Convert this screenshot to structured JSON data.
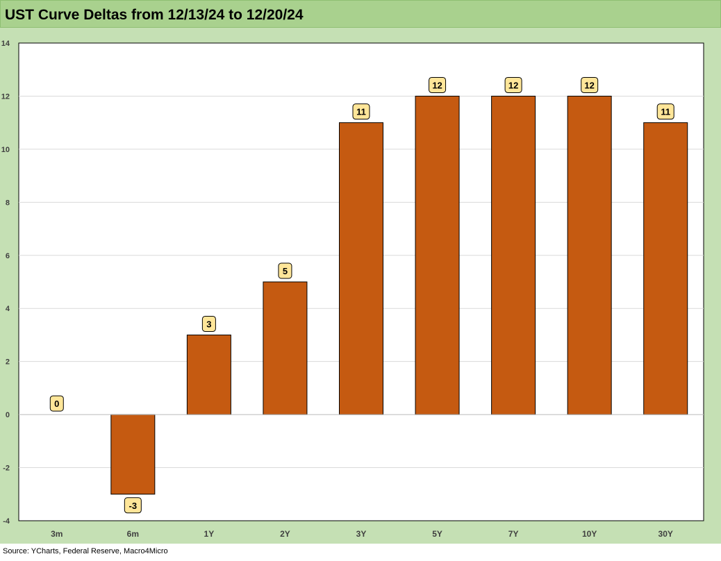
{
  "chart_data": {
    "type": "bar",
    "title": "UST Curve Deltas from 12/13/24 to 12/20/24",
    "categories": [
      "3m",
      "6m",
      "1Y",
      "2Y",
      "3Y",
      "5Y",
      "7Y",
      "10Y",
      "30Y"
    ],
    "values": [
      0,
      -3,
      3,
      5,
      11,
      12,
      12,
      12,
      11
    ],
    "data_labels": [
      "0",
      "-3",
      "3",
      "5",
      "11",
      "12",
      "12",
      "12",
      "11"
    ],
    "ylim": [
      -4,
      14
    ],
    "yticks": [
      -4,
      -2,
      0,
      2,
      4,
      6,
      8,
      10,
      12,
      14
    ],
    "xlabel": "",
    "ylabel": "",
    "grid": true,
    "legend": "none",
    "colors": {
      "bar": "#c55a11",
      "bar_outline": "#000000",
      "label_fill": "#ffe699",
      "title_band": "#a9d18e",
      "panel": "#c5e0b4",
      "plot": "#ffffff",
      "grid": "#d9d9d9"
    }
  },
  "source": "Source: YCharts, Federal Reserve, Macro4Micro"
}
